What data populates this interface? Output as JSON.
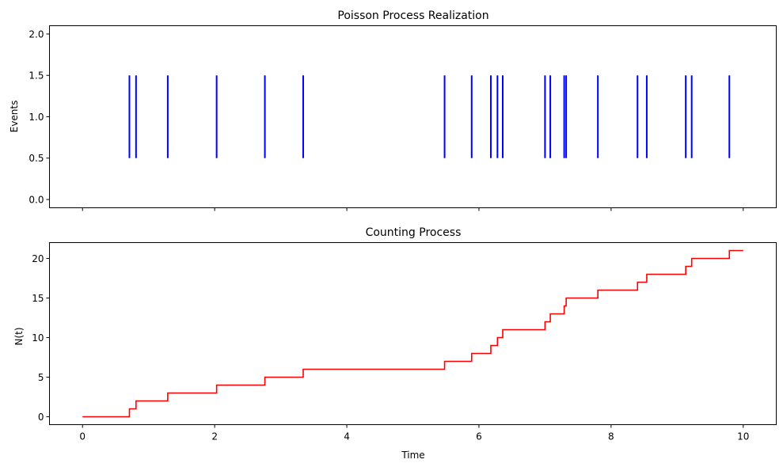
{
  "chart_data": [
    {
      "type": "eventplot",
      "title": "Poisson Process Realization",
      "xlabel": "",
      "ylabel": "Events",
      "xlim": [
        -0.5,
        10.5
      ],
      "ylim": [
        -0.1,
        2.1
      ],
      "xticks": [
        0,
        2,
        4,
        6,
        8,
        10
      ],
      "xtick_labels_visible": false,
      "yticks": [
        0.0,
        0.5,
        1.0,
        1.5,
        2.0
      ],
      "ytick_labels": [
        "0.0",
        "0.5",
        "1.0",
        "1.5",
        "2.0"
      ],
      "line_range": [
        0.5,
        1.5
      ],
      "color": "#0000ff",
      "events": [
        0.71,
        0.81,
        1.29,
        2.03,
        2.76,
        3.34,
        5.48,
        5.89,
        6.18,
        6.28,
        6.36,
        7.0,
        7.08,
        7.29,
        7.32,
        7.8,
        8.4,
        8.54,
        9.13,
        9.22,
        9.79
      ]
    },
    {
      "type": "step",
      "title": "Counting Process",
      "xlabel": "Time",
      "ylabel": "N(t)",
      "xlim": [
        -0.5,
        10.5
      ],
      "ylim": [
        -1,
        22
      ],
      "xticks": [
        0,
        2,
        4,
        6,
        8,
        10
      ],
      "xtick_labels": [
        "0",
        "2",
        "4",
        "6",
        "8",
        "10"
      ],
      "yticks": [
        0,
        5,
        10,
        15,
        20
      ],
      "ytick_labels": [
        "0",
        "5",
        "10",
        "15",
        "20"
      ],
      "color": "#ff0000",
      "x": [
        0,
        0.71,
        0.81,
        1.29,
        2.03,
        2.76,
        3.34,
        5.48,
        5.89,
        6.18,
        6.28,
        6.36,
        7.0,
        7.08,
        7.29,
        7.32,
        7.8,
        8.4,
        8.54,
        9.13,
        9.22,
        9.79,
        10
      ],
      "y": [
        0,
        1,
        2,
        3,
        4,
        5,
        6,
        7,
        8,
        9,
        10,
        11,
        12,
        13,
        14,
        15,
        16,
        17,
        18,
        19,
        20,
        21,
        21
      ]
    }
  ]
}
